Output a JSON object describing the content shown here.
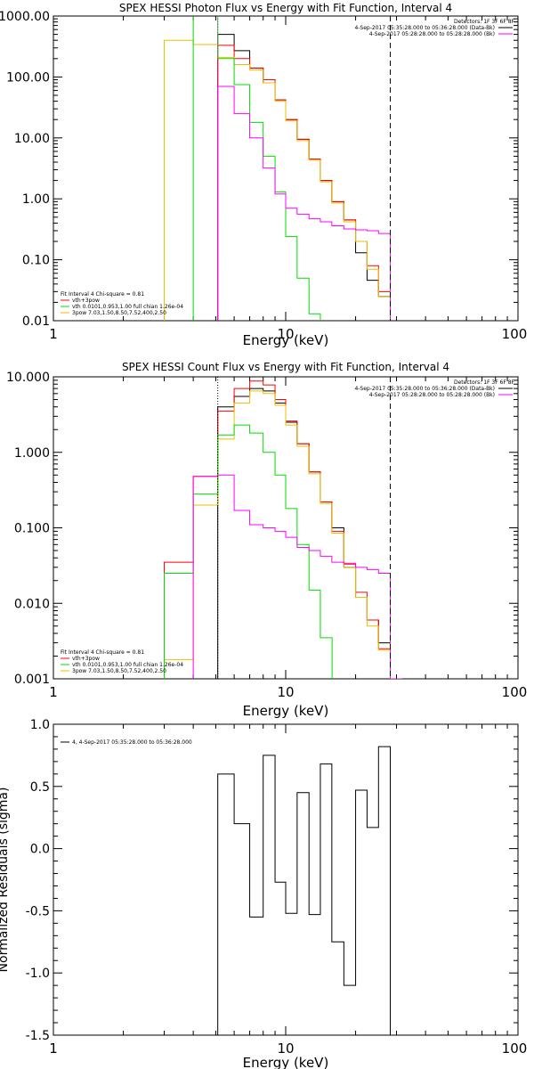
{
  "chart_data": [
    {
      "type": "line",
      "title": "SPEX HESSI Photon Flux vs Energy with Fit Function, Interval 4",
      "xlabel": "Energy (keV)",
      "ylabel": "",
      "x_scale": "log",
      "y_scale": "log",
      "xlim": [
        1,
        100
      ],
      "ylim": [
        0.01,
        1000
      ],
      "x_ticks": [
        1,
        10,
        100
      ],
      "x_tick_labels": [
        "1",
        "10",
        "100"
      ],
      "y_ticks": [
        0.01,
        0.1,
        1,
        10,
        100,
        1000
      ],
      "y_tick_labels": [
        "0.01",
        "0.10",
        "1.00",
        "10.00",
        "100.00",
        "1000.00"
      ],
      "vlines": [
        {
          "x": 5.1,
          "style": "dotted",
          "color": "#ff00ff"
        },
        {
          "x": 28.2,
          "style": "dashed",
          "color": "#000000"
        }
      ],
      "legend_right": [
        {
          "text": "Detectors: 1F 3F 6F 8F",
          "color": ""
        },
        {
          "text": "4-Sep-2017 05:35:28.000 to 05:36:28.000 (Data-Bk)",
          "color": "#000000"
        },
        {
          "text": "4-Sep-2017 05:28:28.000 to 05:28:28.000 (Bk)",
          "color": "#ff00ff"
        }
      ],
      "legend_left": [
        {
          "text": "Fit Interval 4   Chi-square = 0.81",
          "color": ""
        },
        {
          "text": "vth+3pow",
          "color": "#ff0000"
        },
        {
          "text": "vth 0.0101,0.953,1.00  full chian 1.26e-04",
          "color": "#00dd00"
        },
        {
          "text": "3pow 7.03,1.50,8.50,7.52,400,2.50",
          "color": "#e8c000"
        }
      ],
      "series": [
        {
          "color": "#000000",
          "points": [
            [
              5.1,
              500
            ],
            [
              6.0,
              270
            ],
            [
              7.0,
              140
            ],
            [
              8.0,
              80
            ],
            [
              9.0,
              42
            ],
            [
              10.0,
              20
            ],
            [
              11.2,
              9.5
            ],
            [
              12.6,
              4.5
            ],
            [
              14.1,
              2.0
            ],
            [
              15.8,
              0.9
            ],
            [
              17.8,
              0.45
            ],
            [
              20.0,
              0.13
            ],
            [
              22.4,
              0.046
            ],
            [
              25.1,
              0.025
            ],
            [
              28.2,
              0.008
            ]
          ]
        },
        {
          "color": "#ff0000",
          "points": [
            [
              5.1,
              330
            ],
            [
              6.0,
              200
            ],
            [
              7.0,
              140
            ],
            [
              8.0,
              90
            ],
            [
              9.0,
              42
            ],
            [
              10.0,
              20
            ],
            [
              11.2,
              9.5
            ],
            [
              12.6,
              4.5
            ],
            [
              14.1,
              2.0
            ],
            [
              15.8,
              0.9
            ],
            [
              17.8,
              0.45
            ],
            [
              20.0,
              0.2
            ],
            [
              22.4,
              0.08
            ],
            [
              25.1,
              0.03
            ],
            [
              28.2,
              0.008
            ]
          ]
        },
        {
          "color": "#e8c000",
          "points": [
            [
              3.0,
              400
            ],
            [
              4.0,
              340
            ],
            [
              5.1,
              210
            ],
            [
              6.0,
              160
            ],
            [
              7.0,
              130
            ],
            [
              8.0,
              80
            ],
            [
              9.0,
              40
            ],
            [
              10.0,
              19
            ],
            [
              11.2,
              9.0
            ],
            [
              12.6,
              4.3
            ],
            [
              14.1,
              1.9
            ],
            [
              15.8,
              0.85
            ],
            [
              17.8,
              0.42
            ],
            [
              20.0,
              0.2
            ],
            [
              22.4,
              0.07
            ],
            [
              25.1,
              0.025
            ],
            [
              28.2,
              0.008
            ]
          ]
        },
        {
          "color": "#00dd00",
          "points": [
            [
              4.0,
              1100
            ],
            [
              5.1,
              200
            ],
            [
              6.0,
              75
            ],
            [
              7.0,
              18
            ],
            [
              8.0,
              5
            ],
            [
              9.0,
              1.3
            ],
            [
              10.0,
              0.24
            ],
            [
              11.2,
              0.05
            ],
            [
              12.6,
              0.013
            ],
            [
              14.1,
              0.005
            ]
          ]
        },
        {
          "color": "#ff00ff",
          "points": [
            [
              5.1,
              70
            ],
            [
              6.0,
              25
            ],
            [
              7.0,
              10
            ],
            [
              8.0,
              3.2
            ],
            [
              9.0,
              1.2
            ],
            [
              10.0,
              0.7
            ],
            [
              11.2,
              0.56
            ],
            [
              12.6,
              0.47
            ],
            [
              14.1,
              0.42
            ],
            [
              15.8,
              0.36
            ],
            [
              17.8,
              0.32
            ],
            [
              20.0,
              0.31
            ],
            [
              22.4,
              0.3
            ],
            [
              25.1,
              0.27
            ],
            [
              28.2,
              0.008
            ]
          ]
        }
      ]
    },
    {
      "type": "line",
      "title": "SPEX HESSI Count Flux vs Energy with Fit Function, Interval 4",
      "xlabel": "Energy (keV)",
      "ylabel": "",
      "x_scale": "log",
      "y_scale": "log",
      "xlim": [
        1,
        100
      ],
      "ylim": [
        0.001,
        10
      ],
      "x_ticks": [
        1,
        10,
        100
      ],
      "x_tick_labels": [
        "1",
        "10",
        "100"
      ],
      "y_ticks": [
        0.001,
        0.01,
        0.1,
        1,
        10
      ],
      "y_tick_labels": [
        "0.001",
        "0.010",
        "0.100",
        "1.000",
        "10.000"
      ],
      "vlines": [
        {
          "x": 5.1,
          "style": "dotted",
          "color": "#000000"
        },
        {
          "x": 28.2,
          "style": "dashed",
          "color": "#000000"
        }
      ],
      "legend_right": [
        {
          "text": "Detectors: 1F 3F 6F 8F",
          "color": ""
        },
        {
          "text": "4-Sep-2017 05:35:28.000 to 05:36:28.000 (Data-Bk)",
          "color": "#000000"
        },
        {
          "text": "4-Sep-2017 05:28:28.000 to 05:28:28.000 (Bk)",
          "color": "#ff00ff"
        }
      ],
      "legend_left": [
        {
          "text": "Fit Interval 4   Chi-square = 0.81",
          "color": ""
        },
        {
          "text": "vth+3pow",
          "color": "#ff0000"
        },
        {
          "text": "vth 0.0101,0.953,1.00  full chian 1.26e-04",
          "color": "#00dd00"
        },
        {
          "text": "3pow 7.03,1.50,8.50,7.52,400,2.50",
          "color": "#e8c000"
        }
      ],
      "series": [
        {
          "color": "#000000",
          "points": [
            [
              5.1,
              4.0
            ],
            [
              6.0,
              5.5
            ],
            [
              7.0,
              7.0
            ],
            [
              8.0,
              6.5
            ],
            [
              9.0,
              4.5
            ],
            [
              10.0,
              2.5
            ],
            [
              11.2,
              1.3
            ],
            [
              12.6,
              0.55
            ],
            [
              14.1,
              0.22
            ],
            [
              15.8,
              0.1
            ],
            [
              17.8,
              0.03
            ],
            [
              20.0,
              0.012
            ],
            [
              22.4,
              0.006
            ],
            [
              25.1,
              0.003
            ],
            [
              28.2,
              0.001
            ]
          ]
        },
        {
          "color": "#ff0000",
          "points": [
            [
              3.0,
              0.035
            ],
            [
              4.0,
              0.48
            ],
            [
              5.1,
              3.5
            ],
            [
              6.0,
              7.0
            ],
            [
              7.0,
              8.8
            ],
            [
              8.0,
              7.8
            ],
            [
              9.0,
              5.0
            ],
            [
              10.0,
              2.6
            ],
            [
              11.2,
              1.3
            ],
            [
              12.6,
              0.55
            ],
            [
              14.1,
              0.22
            ],
            [
              15.8,
              0.09
            ],
            [
              17.8,
              0.033
            ],
            [
              20.0,
              0.014
            ],
            [
              22.4,
              0.006
            ],
            [
              25.1,
              0.0025
            ],
            [
              28.2,
              0.001
            ]
          ]
        },
        {
          "color": "#e8c000",
          "points": [
            [
              3.0,
              0.0018
            ],
            [
              4.0,
              0.2
            ],
            [
              5.1,
              1.5
            ],
            [
              6.0,
              4.5
            ],
            [
              7.0,
              6.5
            ],
            [
              8.0,
              6.0
            ],
            [
              9.0,
              4.2
            ],
            [
              10.0,
              2.3
            ],
            [
              11.2,
              1.2
            ],
            [
              12.6,
              0.52
            ],
            [
              14.1,
              0.21
            ],
            [
              15.8,
              0.085
            ],
            [
              17.8,
              0.03
            ],
            [
              20.0,
              0.012
            ],
            [
              22.4,
              0.005
            ],
            [
              25.1,
              0.0024
            ],
            [
              28.2,
              0.001
            ]
          ]
        },
        {
          "color": "#00dd00",
          "points": [
            [
              3.0,
              0.025
            ],
            [
              4.0,
              0.28
            ],
            [
              5.1,
              1.7
            ],
            [
              6.0,
              2.3
            ],
            [
              7.0,
              1.8
            ],
            [
              8.0,
              1.0
            ],
            [
              9.0,
              0.5
            ],
            [
              10.0,
              0.18
            ],
            [
              11.2,
              0.06
            ],
            [
              12.6,
              0.015
            ],
            [
              14.1,
              0.0035
            ]
          ]
        },
        {
          "color": "#ff00ff",
          "points": [
            [
              4.0,
              0.48
            ],
            [
              5.1,
              0.5
            ],
            [
              6.0,
              0.17
            ],
            [
              7.0,
              0.11
            ],
            [
              8.0,
              0.1
            ],
            [
              9.0,
              0.09
            ],
            [
              10.0,
              0.075
            ],
            [
              11.2,
              0.055
            ],
            [
              12.6,
              0.05
            ],
            [
              14.1,
              0.042
            ],
            [
              15.8,
              0.035
            ],
            [
              17.8,
              0.034
            ],
            [
              20.0,
              0.03
            ],
            [
              22.4,
              0.028
            ],
            [
              25.1,
              0.025
            ],
            [
              28.2,
              0.001
            ]
          ]
        }
      ]
    },
    {
      "type": "line",
      "title": "",
      "xlabel": "Energy (keV)",
      "ylabel": "Normalized Residuals (sigma)",
      "x_scale": "log",
      "y_scale": "linear",
      "xlim": [
        1,
        100
      ],
      "ylim": [
        -1.5,
        1.0
      ],
      "x_ticks": [
        1,
        10,
        100
      ],
      "x_tick_labels": [
        "1",
        "10",
        "100"
      ],
      "y_ticks": [
        -1.5,
        -1.0,
        -0.5,
        0.0,
        0.5,
        1.0
      ],
      "y_tick_labels": [
        "-1.5",
        "-1.0",
        "-0.5",
        "0.0",
        "0.5",
        "1.0"
      ],
      "vlines": [],
      "legend_right": [],
      "legend_left": [
        {
          "text": "4,  4-Sep-2017 05:35:28.000 to 05:36:28.000",
          "color": "#000000"
        }
      ],
      "series": [
        {
          "color": "#000000",
          "edges": [
            5.1,
            6.0,
            7.0,
            8.0,
            9.0,
            10.0,
            11.2,
            12.6,
            14.1,
            15.8,
            17.8,
            20.0,
            22.4,
            25.1,
            28.2
          ],
          "values": [
            0.6,
            0.2,
            -0.55,
            0.75,
            -0.27,
            -0.52,
            0.45,
            -0.53,
            0.68,
            -0.75,
            -1.1,
            0.47,
            0.17,
            0.82
          ]
        }
      ]
    }
  ]
}
